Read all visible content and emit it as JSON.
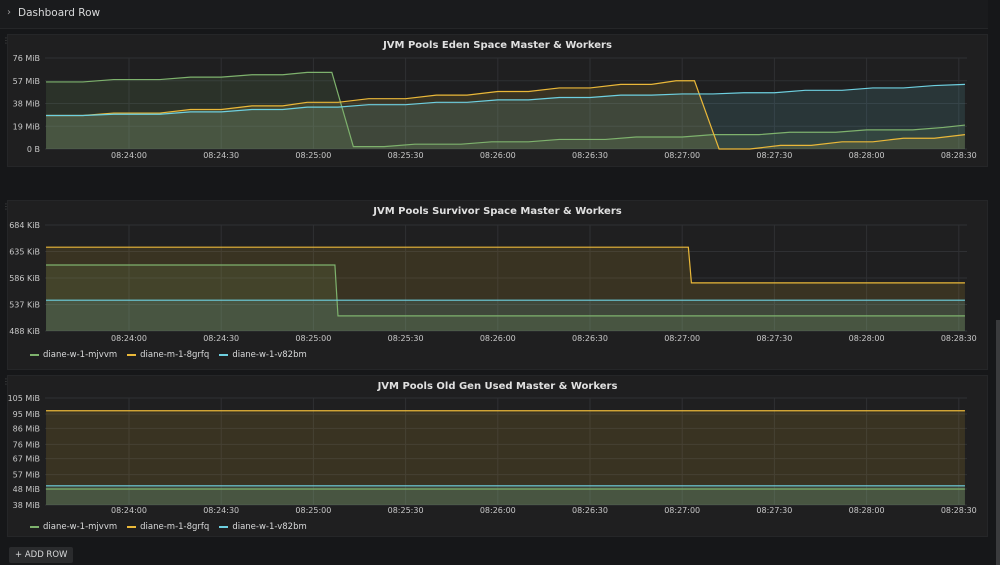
{
  "row": {
    "label": "Dashboard Row",
    "icon": "chevron-right-icon"
  },
  "add_row": {
    "icon": "plus-icon",
    "label": "ADD ROW"
  },
  "colors": {
    "green": "#7EB26D",
    "yellow": "#EAB839",
    "blue": "#6ED0E0"
  },
  "legend": [
    {
      "name": "diane-w-1-mjvvm",
      "color": "#7EB26D"
    },
    {
      "name": "diane-m-1-8grfq",
      "color": "#EAB839"
    },
    {
      "name": "diane-w-1-v82bm",
      "color": "#6ED0E0"
    }
  ],
  "chart_data": [
    {
      "type": "area",
      "title": "JVM Pools Eden Space Master & Workers",
      "unit": "MiB",
      "ylim": [
        0,
        76
      ],
      "yticks": [
        {
          "v": 0,
          "label": "0 B"
        },
        {
          "v": 19,
          "label": "19 MiB"
        },
        {
          "v": 38,
          "label": "38 MiB"
        },
        {
          "v": 57,
          "label": "57 MiB"
        },
        {
          "v": 76,
          "label": "76 MiB"
        }
      ],
      "xlim": [
        "08:23:33",
        "08:28:32"
      ],
      "xticks": [
        "08:24:00",
        "08:24:30",
        "08:25:00",
        "08:25:30",
        "08:26:00",
        "08:26:30",
        "08:27:00",
        "08:27:30",
        "08:28:00",
        "08:28:30"
      ],
      "grid": true,
      "legend_shown": false,
      "series": [
        {
          "name": "diane-w-1-mjvvm",
          "color": "#7EB26D",
          "points": [
            [
              "08:23:33",
              56
            ],
            [
              "08:23:45",
              56
            ],
            [
              "08:23:55",
              58
            ],
            [
              "08:24:10",
              58
            ],
            [
              "08:24:20",
              60
            ],
            [
              "08:24:30",
              60
            ],
            [
              "08:24:40",
              62
            ],
            [
              "08:24:50",
              62
            ],
            [
              "08:24:58",
              64
            ],
            [
              "08:25:06",
              64
            ],
            [
              "08:25:13",
              2
            ],
            [
              "08:25:23",
              2
            ],
            [
              "08:25:33",
              4
            ],
            [
              "08:25:48",
              4
            ],
            [
              "08:25:58",
              6
            ],
            [
              "08:26:10",
              6
            ],
            [
              "08:26:20",
              8
            ],
            [
              "08:26:35",
              8
            ],
            [
              "08:26:45",
              10
            ],
            [
              "08:27:00",
              10
            ],
            [
              "08:27:10",
              12
            ],
            [
              "08:27:25",
              12
            ],
            [
              "08:27:35",
              14
            ],
            [
              "08:27:50",
              14
            ],
            [
              "08:28:00",
              16
            ],
            [
              "08:28:15",
              16
            ],
            [
              "08:28:25",
              18
            ],
            [
              "08:28:32",
              20
            ]
          ]
        },
        {
          "name": "diane-m-1-8grfq",
          "color": "#EAB839",
          "points": [
            [
              "08:23:33",
              28
            ],
            [
              "08:23:45",
              28
            ],
            [
              "08:23:55",
              30
            ],
            [
              "08:24:10",
              30
            ],
            [
              "08:24:20",
              33
            ],
            [
              "08:24:30",
              33
            ],
            [
              "08:24:40",
              36
            ],
            [
              "08:24:50",
              36
            ],
            [
              "08:24:58",
              39
            ],
            [
              "08:25:08",
              39
            ],
            [
              "08:25:18",
              42
            ],
            [
              "08:25:30",
              42
            ],
            [
              "08:25:40",
              45
            ],
            [
              "08:25:50",
              45
            ],
            [
              "08:26:00",
              48
            ],
            [
              "08:26:10",
              48
            ],
            [
              "08:26:20",
              51
            ],
            [
              "08:26:30",
              51
            ],
            [
              "08:26:40",
              54
            ],
            [
              "08:26:50",
              54
            ],
            [
              "08:26:58",
              57
            ],
            [
              "08:27:04",
              57
            ],
            [
              "08:27:12",
              0
            ],
            [
              "08:27:22",
              0
            ],
            [
              "08:27:32",
              3
            ],
            [
              "08:27:42",
              3
            ],
            [
              "08:27:52",
              6
            ],
            [
              "08:28:02",
              6
            ],
            [
              "08:28:12",
              9
            ],
            [
              "08:28:22",
              9
            ],
            [
              "08:28:32",
              12
            ]
          ]
        },
        {
          "name": "diane-w-1-v82bm",
          "color": "#6ED0E0",
          "points": [
            [
              "08:23:33",
              28
            ],
            [
              "08:23:45",
              28
            ],
            [
              "08:23:55",
              29
            ],
            [
              "08:24:10",
              29
            ],
            [
              "08:24:20",
              31
            ],
            [
              "08:24:30",
              31
            ],
            [
              "08:24:40",
              33
            ],
            [
              "08:24:50",
              33
            ],
            [
              "08:24:58",
              35
            ],
            [
              "08:25:08",
              35
            ],
            [
              "08:25:18",
              37
            ],
            [
              "08:25:30",
              37
            ],
            [
              "08:25:40",
              39
            ],
            [
              "08:25:50",
              39
            ],
            [
              "08:26:00",
              41
            ],
            [
              "08:26:10",
              41
            ],
            [
              "08:26:20",
              43
            ],
            [
              "08:26:30",
              43
            ],
            [
              "08:26:40",
              45
            ],
            [
              "08:26:50",
              45
            ],
            [
              "08:27:00",
              46
            ],
            [
              "08:27:10",
              46
            ],
            [
              "08:27:20",
              47
            ],
            [
              "08:27:30",
              47
            ],
            [
              "08:27:40",
              49
            ],
            [
              "08:27:52",
              49
            ],
            [
              "08:28:02",
              51
            ],
            [
              "08:28:12",
              51
            ],
            [
              "08:28:22",
              53
            ],
            [
              "08:28:32",
              54
            ]
          ]
        }
      ]
    },
    {
      "type": "area",
      "title": "JVM Pools Survivor Space Master & Workers",
      "unit": "KiB",
      "ylim": [
        488,
        684
      ],
      "yticks": [
        {
          "v": 488,
          "label": "488 KiB"
        },
        {
          "v": 537,
          "label": "537 KiB"
        },
        {
          "v": 586,
          "label": "586 KiB"
        },
        {
          "v": 635,
          "label": "635 KiB"
        },
        {
          "v": 684,
          "label": "684 KiB"
        }
      ],
      "xlim": [
        "08:23:33",
        "08:28:32"
      ],
      "xticks": [
        "08:24:00",
        "08:24:30",
        "08:25:00",
        "08:25:30",
        "08:26:00",
        "08:26:30",
        "08:27:00",
        "08:27:30",
        "08:28:00",
        "08:28:30"
      ],
      "grid": true,
      "legend_shown": true,
      "series": [
        {
          "name": "diane-w-1-mjvvm",
          "color": "#7EB26D",
          "points": [
            [
              "08:23:33",
              610
            ],
            [
              "08:25:07",
              610
            ],
            [
              "08:25:08",
              516
            ],
            [
              "08:28:32",
              516
            ]
          ]
        },
        {
          "name": "diane-m-1-8grfq",
          "color": "#EAB839",
          "points": [
            [
              "08:23:33",
              643
            ],
            [
              "08:27:02",
              643
            ],
            [
              "08:27:03",
              577
            ],
            [
              "08:28:32",
              577
            ]
          ]
        },
        {
          "name": "diane-w-1-v82bm",
          "color": "#6ED0E0",
          "points": [
            [
              "08:23:33",
              545
            ],
            [
              "08:28:32",
              545
            ]
          ]
        }
      ]
    },
    {
      "type": "area",
      "title": "JVM Pools Old Gen Used Master & Workers",
      "unit": "MiB",
      "ylim": [
        38,
        105
      ],
      "yticks": [
        {
          "v": 38,
          "label": "38 MiB"
        },
        {
          "v": 48,
          "label": "48 MiB"
        },
        {
          "v": 57,
          "label": "57 MiB"
        },
        {
          "v": 67,
          "label": "67 MiB"
        },
        {
          "v": 76,
          "label": "76 MiB"
        },
        {
          "v": 86,
          "label": "86 MiB"
        },
        {
          "v": 95,
          "label": "95 MiB"
        },
        {
          "v": 105,
          "label": "105 MiB"
        }
      ],
      "xlim": [
        "08:23:33",
        "08:28:32"
      ],
      "xticks": [
        "08:24:00",
        "08:24:30",
        "08:25:00",
        "08:25:30",
        "08:26:00",
        "08:26:30",
        "08:27:00",
        "08:27:30",
        "08:28:00",
        "08:28:30"
      ],
      "grid": true,
      "legend_shown": true,
      "series": [
        {
          "name": "diane-w-1-mjvvm",
          "color": "#7EB26D",
          "points": [
            [
              "08:23:33",
              48
            ],
            [
              "08:28:32",
              48
            ]
          ]
        },
        {
          "name": "diane-m-1-8grfq",
          "color": "#EAB839",
          "points": [
            [
              "08:23:33",
              97
            ],
            [
              "08:28:32",
              97
            ]
          ]
        },
        {
          "name": "diane-w-1-v82bm",
          "color": "#6ED0E0",
          "points": [
            [
              "08:23:33",
              50
            ],
            [
              "08:28:32",
              50
            ]
          ]
        }
      ]
    }
  ]
}
